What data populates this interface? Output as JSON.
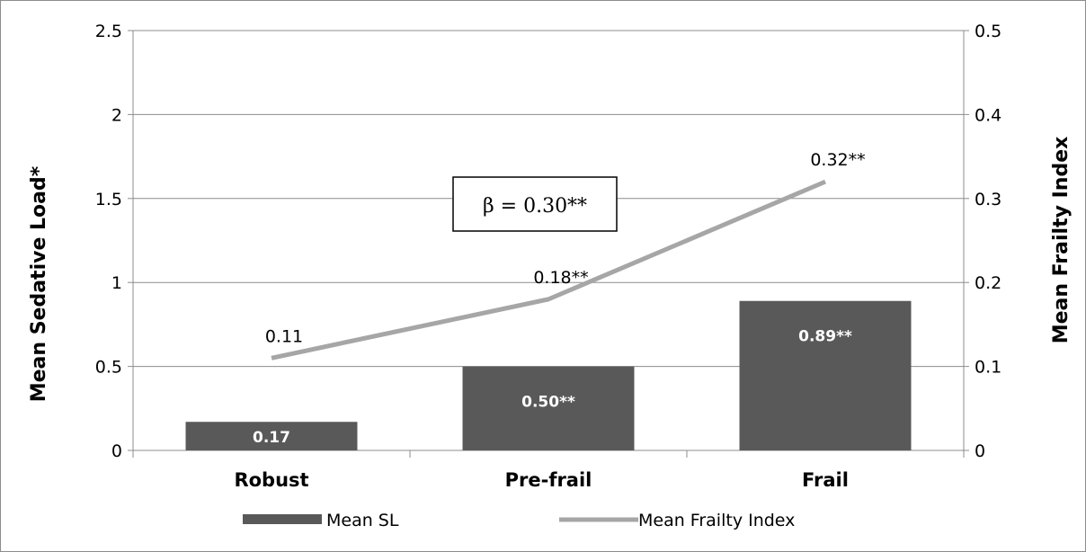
{
  "chart_data": {
    "type": "bar+line",
    "categories": [
      "Robust",
      "Pre-frail",
      "Frail"
    ],
    "series": [
      {
        "name": "Mean SL",
        "type": "bar",
        "axis": "left",
        "color": "#595959",
        "values": [
          0.17,
          0.5,
          0.89
        ],
        "labels": [
          "0.17",
          "0.50**",
          "0.89**"
        ]
      },
      {
        "name": "Mean Frailty Index",
        "type": "line",
        "axis": "right",
        "color": "#a6a6a6",
        "values": [
          0.11,
          0.18,
          0.32
        ],
        "labels": [
          "0.11",
          "0.18**",
          "0.32**"
        ]
      }
    ],
    "ylabel_left": "Mean Sedative Load*",
    "ylabel_right": "Mean Frailty Index",
    "ylim_left": [
      0,
      2.5
    ],
    "ylim_right": [
      0,
      0.5
    ],
    "yticks_left": [
      "0",
      "0.5",
      "1",
      "1.5",
      "2",
      "2.5"
    ],
    "yticks_right": [
      "0",
      "0.1",
      "0.2",
      "0.3",
      "0.4",
      "0.5"
    ],
    "grid": true,
    "legend": "bottom",
    "annotation": "β = 0.30**"
  }
}
